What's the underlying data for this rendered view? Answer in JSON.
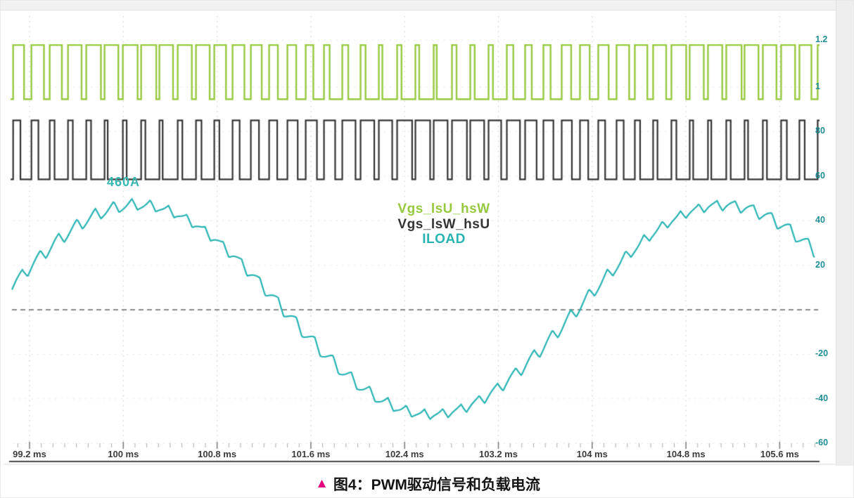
{
  "page": {
    "background": "#ffffff",
    "top_band_color": "#f1f1f1",
    "right_strip_color": "#eeeeee"
  },
  "caption": {
    "marker": "▲",
    "marker_color": "#e4007f",
    "text": "图4：PWM驱动信号和负载电流"
  },
  "chart_data": {
    "type": "line",
    "title": "",
    "xlabel": "",
    "ylabel": "",
    "grid": "dotted verticals at major time ticks, dashed zero line",
    "x_axis": {
      "unit": "ms",
      "start_ms": 99.05,
      "end_ms": 105.9,
      "minor_step_ms": 0.1,
      "ticks": [
        {
          "label": "99.2 ms",
          "t": 99.2
        },
        {
          "label": "100 ms",
          "t": 100
        },
        {
          "label": "100.8 ms",
          "t": 100.8
        },
        {
          "label": "101.6 ms",
          "t": 101.6
        },
        {
          "label": "102.4 ms",
          "t": 102.4
        },
        {
          "label": "103.2 ms",
          "t": 103.2
        },
        {
          "label": "104 ms",
          "t": 104
        },
        {
          "label": "104.8 ms",
          "t": 104.8
        },
        {
          "label": "105.6 ms",
          "t": 105.6
        }
      ]
    },
    "y_axis": {
      "zero_line_dashed": true,
      "ticks": [
        {
          "label": "1.2",
          "value": 121
        },
        {
          "label": "1",
          "value": 100
        },
        {
          "label": "80",
          "value": 80
        },
        {
          "label": "60",
          "value": 60
        },
        {
          "label": "40",
          "value": 40
        },
        {
          "label": "20",
          "value": 20
        },
        {
          "label": "-20",
          "value": -20
        },
        {
          "label": "-40",
          "value": -40
        },
        {
          "label": "-60",
          "value": -60
        }
      ]
    },
    "series": [
      {
        "name": "Vgs_lsU_hsW",
        "kind": "pwm",
        "color": "#97c93f",
        "level_high": 118.8,
        "level_low": 94.5,
        "carrier_period_ms": 0.156,
        "duty_base": 0.5,
        "duty_mod": 0.3,
        "mod_period_ms": 5,
        "mod_peak_at_ms": 100.12
      },
      {
        "name": "Vgs_lsW_hsU",
        "kind": "pwm",
        "color": "#333333",
        "level_high": 85,
        "level_low": 58.5,
        "carrier_period_ms": 0.156,
        "duty_base": 0.5,
        "duty_mod": -0.3,
        "mod_period_ms": 5,
        "mod_peak_at_ms": 100.12
      },
      {
        "name": "ILOAD",
        "kind": "sine_ripple",
        "color": "#28b4b2",
        "amplitude": 47,
        "offset": 0,
        "period_ms": 5,
        "peak_at_ms": 100.12,
        "ripple_amplitude": 2.6,
        "ripple_period_ms": 0.156
      }
    ],
    "legend": {
      "position": "center",
      "entries": [
        "Vgs_lsU_hsW",
        "Vgs_lsW_hsU",
        "ILOAD"
      ]
    },
    "annotations": [
      {
        "text": "460A",
        "t_ms": 99.86,
        "value": 57.5,
        "color": "#35b8b0"
      }
    ]
  }
}
